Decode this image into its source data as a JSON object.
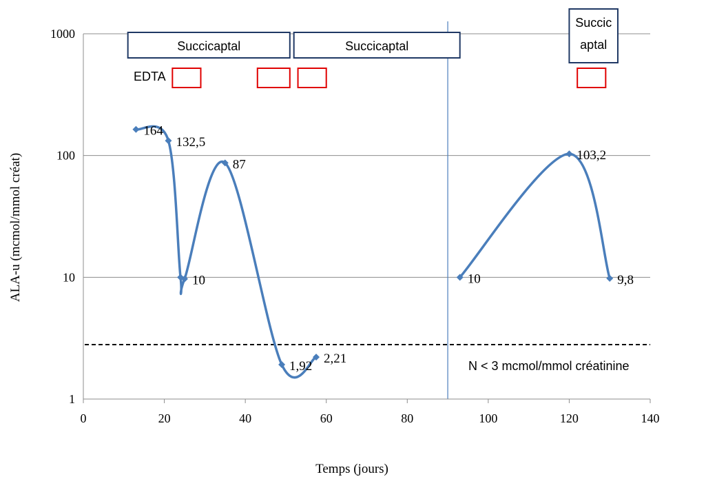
{
  "chart_data": {
    "type": "line",
    "ylabel": "ALA-u (mcmol/mmol créat)",
    "xlabel": "Temps (jours)",
    "xlim": [
      0,
      140
    ],
    "ylim": [
      1,
      1000
    ],
    "yscale": "log",
    "x_ticks": [
      0,
      20,
      40,
      60,
      80,
      100,
      120,
      140
    ],
    "y_ticks": [
      1,
      10,
      100,
      1000
    ],
    "grid": "horizontal",
    "line_color": "#4a7ebb",
    "threshold_color": "#000000",
    "box_color": "#1f3864",
    "edta_box_color": "#e00000",
    "series": [
      {
        "segments": [
          [
            {
              "x": 13,
              "y": 164,
              "label": "164"
            },
            {
              "x": 21,
              "y": 132.5,
              "label": "132,5"
            },
            {
              "x": 24,
              "y": 10
            },
            {
              "x": 25,
              "y": 9.7,
              "label": "10"
            },
            {
              "x": 35,
              "y": 87,
              "label": "87"
            },
            {
              "x": 49,
              "y": 1.92,
              "label": "1,92"
            },
            {
              "x": 57.5,
              "y": 2.21,
              "label": "2,21"
            }
          ],
          [
            {
              "x": 93,
              "y": 10,
              "label": "10"
            },
            {
              "x": 120,
              "y": 103.2,
              "label": "103,2"
            },
            {
              "x": 130,
              "y": 9.8,
              "label": "9,8"
            }
          ]
        ]
      }
    ],
    "threshold": {
      "y": 2.8,
      "label": "N < 3 mcmol/mmol créatinine"
    },
    "vertical_line_x": 90,
    "treatment_boxes": [
      {
        "lines": [
          "Succicaptal"
        ],
        "x_start": 11,
        "x_end": 51
      },
      {
        "lines": [
          "Succicaptal"
        ],
        "x_start": 52,
        "x_end": 93
      },
      {
        "lines": [
          "Succic",
          "aptal"
        ],
        "x_start": 120,
        "x_end": 132
      }
    ],
    "edta_label": "EDTA",
    "edta_boxes": [
      {
        "x_start": 22,
        "x_end": 29
      },
      {
        "x_start": 43,
        "x_end": 51
      },
      {
        "x_start": 53,
        "x_end": 60
      },
      {
        "x_start": 122,
        "x_end": 129
      }
    ]
  }
}
